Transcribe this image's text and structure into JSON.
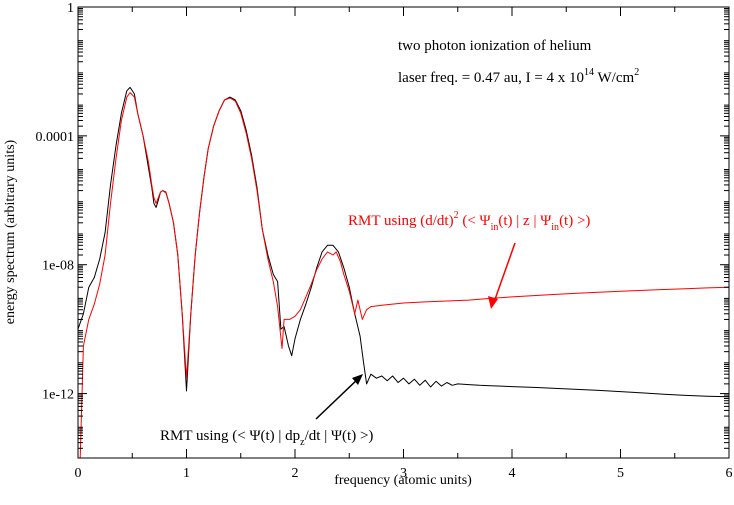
{
  "chart_data": {
    "type": "line",
    "xlabel": "frequency (atomic units)",
    "ylabel": "energy spectrum (arbitrary units)",
    "xlim": [
      0,
      6
    ],
    "ylim": [
      1e-14,
      1
    ],
    "yscale": "log",
    "grid": false,
    "x_ticks": [
      0,
      1,
      2,
      3,
      4,
      5,
      6
    ],
    "x_tick_labels": [
      "0",
      "1",
      "2",
      "3",
      "4",
      "5",
      "6"
    ],
    "y_ticks": [
      1e-12,
      1e-08,
      0.0001,
      1
    ],
    "y_tick_labels": [
      "1e-12",
      "1e-08",
      "0.0001",
      "1"
    ],
    "annotations": {
      "title_line1": "two photon ionization of helium",
      "title_line2": {
        "prefix": "laser freq. = 0.47 au, I = 4 x 10",
        "exp": "14",
        "middle": " W/cm",
        "exp2": "2"
      },
      "red_label": {
        "p1": "RMT using (d/dt)",
        "sup": "2",
        "p2": " (< Ψ",
        "sub1": "in",
        "p3": "(t) | z |  Ψ",
        "sub2": "in",
        "p4": "(t) >)"
      },
      "black_label": {
        "p1": "RMT using (< Ψ(t) | dp",
        "sub": "z",
        "p2": "/dt |  Ψ(t) >)"
      }
    },
    "series": [
      {
        "color": "#000000",
        "points": [
          [
            0.0,
            1e-10
          ],
          [
            0.05,
            3e-10
          ],
          [
            0.1,
            2e-09
          ],
          [
            0.15,
            4e-09
          ],
          [
            0.2,
            1.5e-08
          ],
          [
            0.25,
            1e-07
          ],
          [
            0.3,
            3e-06
          ],
          [
            0.35,
            5e-05
          ],
          [
            0.4,
            0.0005
          ],
          [
            0.45,
            0.0025
          ],
          [
            0.48,
            0.0032
          ],
          [
            0.52,
            0.002
          ],
          [
            0.55,
            0.0005
          ],
          [
            0.6,
            0.0001
          ],
          [
            0.65,
            1e-05
          ],
          [
            0.68,
            2.5e-06
          ],
          [
            0.7,
            8e-07
          ],
          [
            0.72,
            6e-07
          ],
          [
            0.74,
            1e-06
          ],
          [
            0.76,
            1.8e-06
          ],
          [
            0.78,
            2e-06
          ],
          [
            0.81,
            1.8e-06
          ],
          [
            0.84,
            8e-07
          ],
          [
            0.88,
            2e-07
          ],
          [
            0.92,
            2e-08
          ],
          [
            0.96,
            3e-10
          ],
          [
            1.0,
            1.2e-12
          ],
          [
            1.04,
            3e-10
          ],
          [
            1.08,
            2e-08
          ],
          [
            1.12,
            4e-07
          ],
          [
            1.16,
            5e-06
          ],
          [
            1.2,
            4e-05
          ],
          [
            1.25,
            0.0002
          ],
          [
            1.3,
            0.0006
          ],
          [
            1.35,
            0.0013
          ],
          [
            1.4,
            0.0016
          ],
          [
            1.45,
            0.0013
          ],
          [
            1.5,
            0.0006
          ],
          [
            1.55,
            0.00015
          ],
          [
            1.6,
            2.5e-05
          ],
          [
            1.65,
            2.5e-06
          ],
          [
            1.7,
            1.2e-07
          ],
          [
            1.75,
            2e-08
          ],
          [
            1.8,
            5e-09
          ],
          [
            1.84,
            3e-09
          ],
          [
            1.87,
            1e-10
          ],
          [
            1.9,
            1.2e-10
          ],
          [
            1.94,
            3e-11
          ],
          [
            1.97,
            1.5e-11
          ],
          [
            2.0,
            5e-11
          ],
          [
            2.05,
            2e-10
          ],
          [
            2.1,
            6e-10
          ],
          [
            2.15,
            2e-09
          ],
          [
            2.2,
            8e-09
          ],
          [
            2.25,
            2.5e-08
          ],
          [
            2.3,
            4e-08
          ],
          [
            2.35,
            4e-08
          ],
          [
            2.4,
            2.5e-08
          ],
          [
            2.45,
            8e-09
          ],
          [
            2.5,
            2e-09
          ],
          [
            2.55,
            3e-10
          ],
          [
            2.6,
            6e-11
          ],
          [
            2.63,
            1e-11
          ],
          [
            2.66,
            2e-12
          ],
          [
            2.7,
            4e-12
          ],
          [
            2.75,
            3e-12
          ],
          [
            2.8,
            3.5e-12
          ],
          [
            2.85,
            2.5e-12
          ],
          [
            2.9,
            3.5e-12
          ],
          [
            2.95,
            2.2e-12
          ],
          [
            3.0,
            3e-12
          ],
          [
            3.05,
            2e-12
          ],
          [
            3.1,
            2.8e-12
          ],
          [
            3.15,
            1.8e-12
          ],
          [
            3.2,
            2.6e-12
          ],
          [
            3.25,
            1.6e-12
          ],
          [
            3.3,
            2.4e-12
          ],
          [
            3.35,
            1.7e-12
          ],
          [
            3.4,
            2.2e-12
          ],
          [
            3.45,
            1.8e-12
          ],
          [
            3.5,
            2e-12
          ],
          [
            3.6,
            1.9e-12
          ],
          [
            3.7,
            1.8e-12
          ],
          [
            3.8,
            1.75e-12
          ],
          [
            3.9,
            1.7e-12
          ],
          [
            4.0,
            1.65e-12
          ],
          [
            4.2,
            1.55e-12
          ],
          [
            4.4,
            1.45e-12
          ],
          [
            4.6,
            1.35e-12
          ],
          [
            4.8,
            1.25e-12
          ],
          [
            5.0,
            1.15e-12
          ],
          [
            5.2,
            1.05e-12
          ],
          [
            5.4,
            9.5e-13
          ],
          [
            5.6,
            8.8e-13
          ],
          [
            5.8,
            8.3e-13
          ],
          [
            6.0,
            8e-13
          ]
        ]
      },
      {
        "color": "#ff0000",
        "points": [
          [
            0.02,
            1e-14
          ],
          [
            0.05,
            3e-11
          ],
          [
            0.1,
            2e-10
          ],
          [
            0.15,
            6e-10
          ],
          [
            0.2,
            2.5e-09
          ],
          [
            0.25,
            2e-08
          ],
          [
            0.3,
            8e-07
          ],
          [
            0.35,
            2e-05
          ],
          [
            0.4,
            0.0003
          ],
          [
            0.45,
            0.0016
          ],
          [
            0.48,
            0.0022
          ],
          [
            0.52,
            0.0016
          ],
          [
            0.55,
            0.0005
          ],
          [
            0.6,
            0.0001
          ],
          [
            0.65,
            1.5e-05
          ],
          [
            0.68,
            3e-06
          ],
          [
            0.7,
            1.2e-06
          ],
          [
            0.72,
            8e-07
          ],
          [
            0.74,
            1.2e-06
          ],
          [
            0.76,
            1.8e-06
          ],
          [
            0.78,
            2e-06
          ],
          [
            0.81,
            1.7e-06
          ],
          [
            0.84,
            8e-07
          ],
          [
            0.88,
            2e-07
          ],
          [
            0.92,
            2e-08
          ],
          [
            0.96,
            3e-10
          ],
          [
            1.0,
            3e-12
          ],
          [
            1.04,
            3e-10
          ],
          [
            1.08,
            2e-08
          ],
          [
            1.12,
            4e-07
          ],
          [
            1.16,
            5e-06
          ],
          [
            1.2,
            4e-05
          ],
          [
            1.25,
            0.0002
          ],
          [
            1.3,
            0.0006
          ],
          [
            1.35,
            0.0013
          ],
          [
            1.4,
            0.0015
          ],
          [
            1.45,
            0.0012
          ],
          [
            1.5,
            0.0005
          ],
          [
            1.55,
            0.00012
          ],
          [
            1.6,
            2e-05
          ],
          [
            1.65,
            2e-06
          ],
          [
            1.7,
            1.2e-07
          ],
          [
            1.75,
            1.5e-08
          ],
          [
            1.8,
            3e-09
          ],
          [
            1.84,
            5e-10
          ],
          [
            1.88,
            2.5e-11
          ],
          [
            1.9,
            2e-10
          ],
          [
            1.95,
            2e-10
          ],
          [
            2.0,
            2.5e-10
          ],
          [
            2.05,
            4e-10
          ],
          [
            2.1,
            1e-09
          ],
          [
            2.15,
            2.5e-09
          ],
          [
            2.2,
            7e-09
          ],
          [
            2.25,
            1.5e-08
          ],
          [
            2.3,
            2.5e-08
          ],
          [
            2.35,
            2e-08
          ],
          [
            2.38,
            2.5e-08
          ],
          [
            2.42,
            1.2e-08
          ],
          [
            2.45,
            5e-09
          ],
          [
            2.5,
            1.5e-09
          ],
          [
            2.55,
            3e-10
          ],
          [
            2.58,
            8e-10
          ],
          [
            2.62,
            2e-10
          ],
          [
            2.66,
            4e-10
          ],
          [
            2.7,
            5e-10
          ],
          [
            2.8,
            5.5e-10
          ],
          [
            2.9,
            6e-10
          ],
          [
            3.0,
            6.5e-10
          ],
          [
            3.2,
            7e-10
          ],
          [
            3.4,
            7.5e-10
          ],
          [
            3.6,
            8e-10
          ],
          [
            3.8,
            9e-10
          ],
          [
            4.0,
            1e-09
          ],
          [
            4.2,
            1.1e-09
          ],
          [
            4.4,
            1.2e-09
          ],
          [
            4.6,
            1.3e-09
          ],
          [
            4.8,
            1.4e-09
          ],
          [
            5.0,
            1.5e-09
          ],
          [
            5.2,
            1.6e-09
          ],
          [
            5.4,
            1.7e-09
          ],
          [
            5.6,
            1.8e-09
          ],
          [
            5.8,
            1.9e-09
          ],
          [
            6.0,
            2e-09
          ]
        ]
      }
    ]
  }
}
